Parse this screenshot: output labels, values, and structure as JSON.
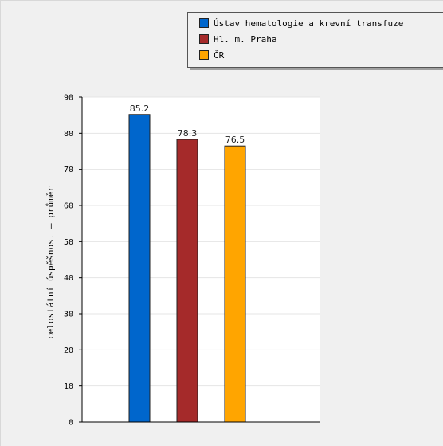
{
  "chart_data": {
    "type": "bar",
    "title": "",
    "xlabel": "",
    "ylabel": "celostátní úspěšnost – průměr",
    "ylim": [
      0,
      90
    ],
    "yticks": [
      0,
      10,
      20,
      30,
      40,
      50,
      60,
      70,
      80,
      90
    ],
    "grid": true,
    "legend_position": "top-right",
    "series": [
      {
        "name": "Ústav hematologie a krevní transfuze",
        "value": 85.2,
        "label": "85.2",
        "color": "#0066cc"
      },
      {
        "name": "Hl. m. Praha",
        "value": 78.3,
        "label": "78.3",
        "color": "#a52a2a"
      },
      {
        "name": "ČR",
        "value": 76.5,
        "label": "76.5",
        "color": "#ffa500"
      }
    ]
  }
}
